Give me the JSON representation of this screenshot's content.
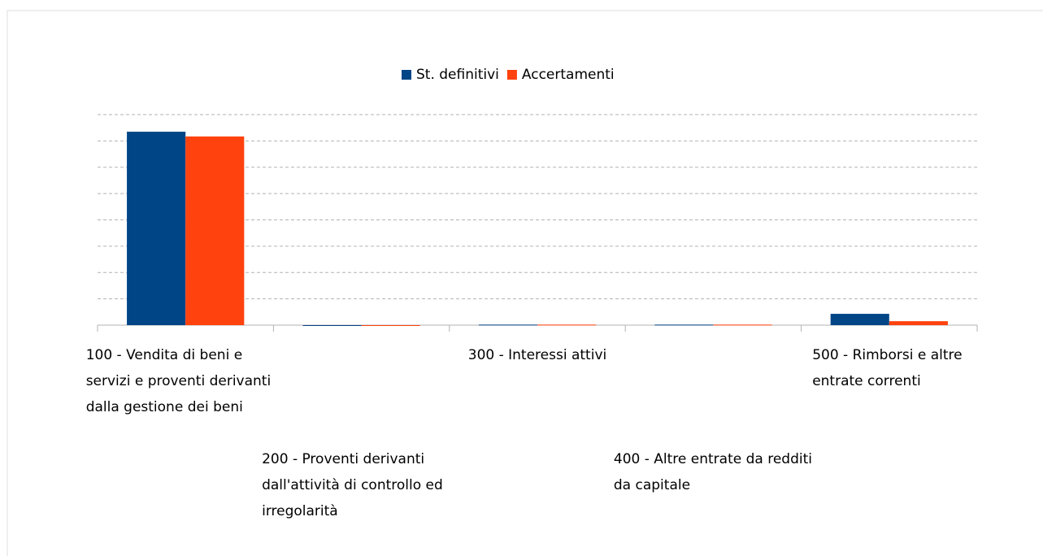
{
  "chart_data": {
    "type": "bar",
    "categories": [
      "100 - Vendita di beni e servizi e proventi derivanti dalla gestione dei beni",
      "200 - Proventi derivanti dall'attività di controllo ed irregolarità",
      "300 - Interessi attivi",
      "400 - Altre entrate da redditi da capitale",
      "500 - Rimborsi e altre entrate correnti"
    ],
    "series": [
      {
        "name": "St. definitivi",
        "color": "#004586",
        "values": [
          7.35,
          0,
          0.02,
          0.02,
          0.43
        ]
      },
      {
        "name": "Accertamenti",
        "color": "#ff420e",
        "values": [
          7.17,
          0,
          0.02,
          0.02,
          0.15
        ]
      }
    ],
    "ylim": [
      0,
      8
    ],
    "yticks": [
      0,
      1,
      2,
      3,
      4,
      5,
      6,
      7,
      8
    ],
    "grid": true,
    "legend": "top"
  }
}
